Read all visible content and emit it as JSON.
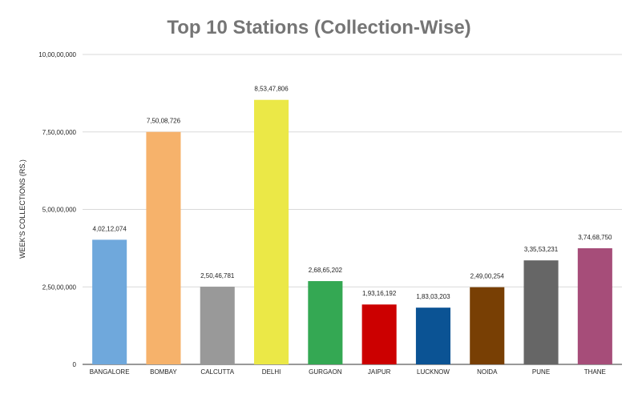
{
  "chart_data": {
    "type": "bar",
    "title": "Top 10 Stations (Collection-Wise)",
    "xlabel": "",
    "ylabel": "WEEK'S COLLECTIONS (RS.)",
    "ylim": [
      0,
      100000000
    ],
    "yticks": [
      {
        "value": 0,
        "label": "0"
      },
      {
        "value": 25000000,
        "label": "2,50,00,000"
      },
      {
        "value": 50000000,
        "label": "5,00,00,000"
      },
      {
        "value": 75000000,
        "label": "7,50,00,000"
      },
      {
        "value": 100000000,
        "label": "10,00,00,000"
      }
    ],
    "grid": true,
    "legend": "none",
    "categories": [
      "BANGALORE",
      "BOMBAY",
      "CALCUTTA",
      "DELHI",
      "GURGAON",
      "JAIPUR",
      "LUCKNOW",
      "NOIDA",
      "PUNE",
      "THANE"
    ],
    "values": [
      40212074,
      75008726,
      25046781,
      85347806,
      26865202,
      19316192,
      18303203,
      24900254,
      33553231,
      37468750
    ],
    "data_labels": [
      "4,02,12,074",
      "7,50,08,726",
      "2,50,46,781",
      "8,53,47,806",
      "2,68,65,202",
      "1,93,16,192",
      "1,83,03,203",
      "2,49,00,254",
      "3,35,53,231",
      "3,74,68,750"
    ],
    "colors": [
      "#6fa8dc",
      "#f6b26b",
      "#999999",
      "#ebe847",
      "#34a853",
      "#cc0000",
      "#0b5394",
      "#783f04",
      "#666666",
      "#a64d79"
    ]
  }
}
